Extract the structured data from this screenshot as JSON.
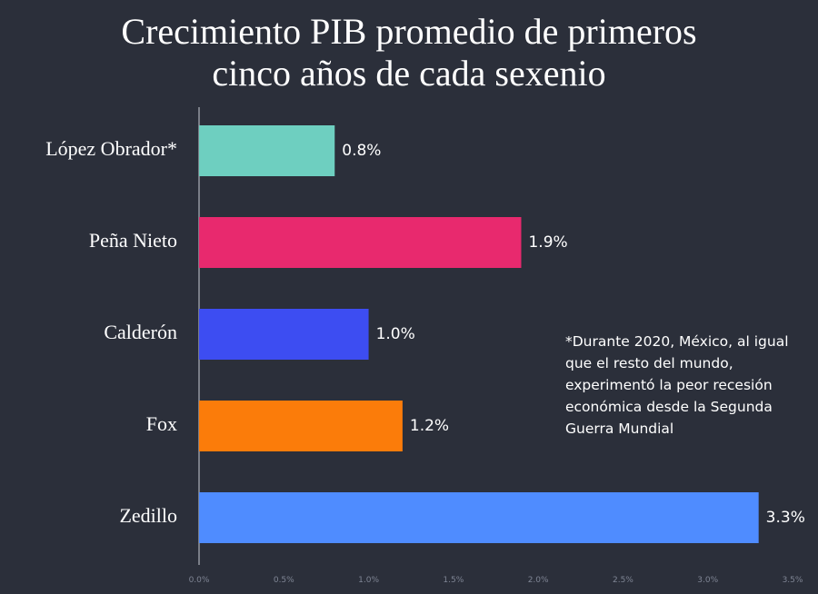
{
  "chart_data": {
    "type": "bar",
    "orientation": "horizontal",
    "title_lines": [
      "Crecimiento PIB promedio de primeros",
      "cinco años de cada sexenio"
    ],
    "categories": [
      "López Obrador*",
      "Peña Nieto",
      "Calderón",
      "Fox",
      "Zedillo"
    ],
    "values": [
      0.8,
      1.9,
      1.0,
      1.2,
      3.3
    ],
    "value_labels": [
      "0.8%",
      "1.9%",
      "1.0%",
      "1.2%",
      "3.3%"
    ],
    "colors": [
      "#6ecfc0",
      "#e8296e",
      "#3d4df2",
      "#fb7c0a",
      "#4f8cff"
    ],
    "xlim": [
      0,
      3.5
    ],
    "x_ticks": [
      0,
      0.5,
      1.0,
      1.5,
      2.0,
      2.5,
      3.0,
      3.5
    ],
    "x_tick_labels": [
      "0.0%",
      "0.5%",
      "1.0%",
      "1.5%",
      "2.0%",
      "2.5%",
      "3.0%",
      "3.5%"
    ],
    "xlabel": "",
    "ylabel": "",
    "grid": false,
    "annotation": "*Durante 2020, México, al igual que el resto del mundo, experimentó la peor recesión económica desde la Segunda Guerra Mundial"
  },
  "theme": {
    "background": "#2b2f3a",
    "text": "#ffffff",
    "tick_text": "#7f8594",
    "axis_line": "#c8ccd4"
  }
}
